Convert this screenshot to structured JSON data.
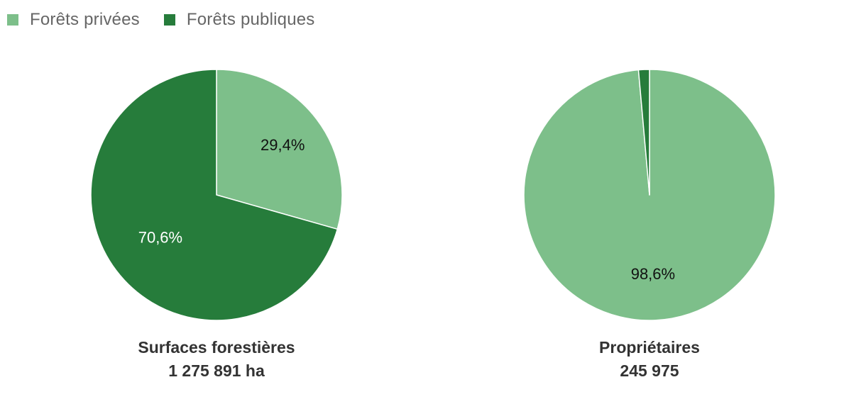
{
  "colors": {
    "private": "#7dbf8a",
    "public": "#267c3b",
    "border": "#ffffff",
    "label_dark": "#111111",
    "label_light": "#ffffff"
  },
  "legend": [
    {
      "label": "Forêts privées",
      "color": "#7dbf8a"
    },
    {
      "label": "Forêts publiques",
      "color": "#267c3b"
    }
  ],
  "chart_data": [
    {
      "type": "pie",
      "title": "Surfaces forestières",
      "subtitle": "1 275 891 ha",
      "categories": [
        "Forêts privées",
        "Forêts publiques"
      ],
      "values": [
        29.4,
        70.6
      ],
      "labels": [
        "29,4%",
        "70,6%"
      ],
      "start_angle_deg": 0
    },
    {
      "type": "pie",
      "title": "Propriétaires",
      "subtitle": "245 975",
      "categories": [
        "Forêts privées",
        "Forêts publiques"
      ],
      "values": [
        98.6,
        1.4
      ],
      "labels": [
        "98,6%",
        ""
      ],
      "start_angle_deg": 0
    }
  ]
}
